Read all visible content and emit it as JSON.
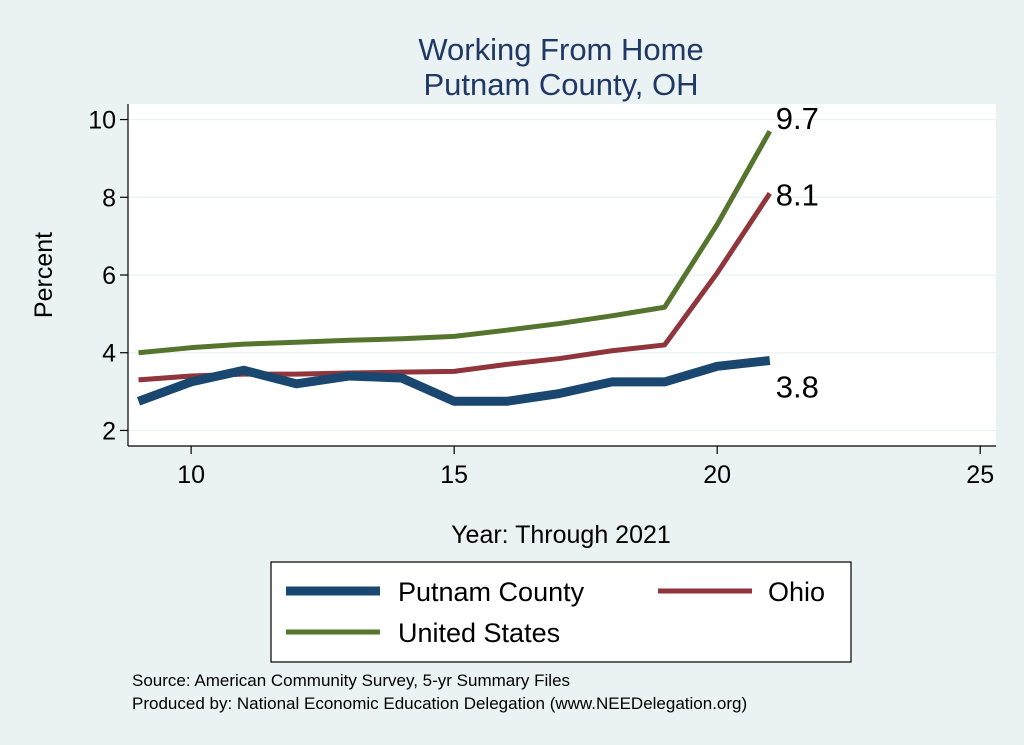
{
  "chart_data": {
    "type": "line",
    "title": [
      "Working From Home",
      "Putnam County, OH"
    ],
    "xlabel": "Year: Through 2021",
    "ylabel": "Percent",
    "xlim": [
      8.8,
      25.3
    ],
    "ylim": [
      1.6,
      10.4
    ],
    "xticks": [
      10,
      15,
      20,
      25
    ],
    "yticks": [
      2,
      4,
      6,
      8,
      10
    ],
    "grid": true,
    "legend_position": "bottom",
    "x": [
      9,
      10,
      11,
      12,
      13,
      14,
      15,
      16,
      17,
      18,
      19,
      20,
      21
    ],
    "series": [
      {
        "name": "Putnam County",
        "color": "#1a476f",
        "width": 9,
        "values": [
          2.75,
          3.25,
          3.55,
          3.2,
          3.4,
          3.35,
          2.75,
          2.75,
          2.95,
          3.25,
          3.25,
          3.65,
          3.8
        ],
        "end_label": "3.8",
        "end_label_position": "below"
      },
      {
        "name": "Ohio",
        "color": "#90353b",
        "width": 5,
        "values": [
          3.3,
          3.4,
          3.45,
          3.45,
          3.48,
          3.5,
          3.52,
          3.7,
          3.85,
          4.05,
          4.2,
          6.05,
          8.1
        ],
        "end_label": "8.1",
        "end_label_position": "right"
      },
      {
        "name": "United States",
        "color": "#55752f",
        "width": 5,
        "values": [
          4.0,
          4.13,
          4.22,
          4.27,
          4.32,
          4.36,
          4.42,
          4.58,
          4.75,
          4.95,
          5.17,
          7.3,
          9.7
        ],
        "end_label": "9.7",
        "end_label_position": "above"
      }
    ]
  },
  "legend": {
    "items": [
      {
        "label": "Putnam County",
        "series_index": 0
      },
      {
        "label": "Ohio",
        "series_index": 1
      },
      {
        "label": "United States",
        "series_index": 2
      }
    ]
  },
  "source": {
    "line1": "Source: American Community Survey, 5-yr Summary Files",
    "line2": "Produced by: National Economic Education Delegation (www.NEEDelegation.org)"
  }
}
